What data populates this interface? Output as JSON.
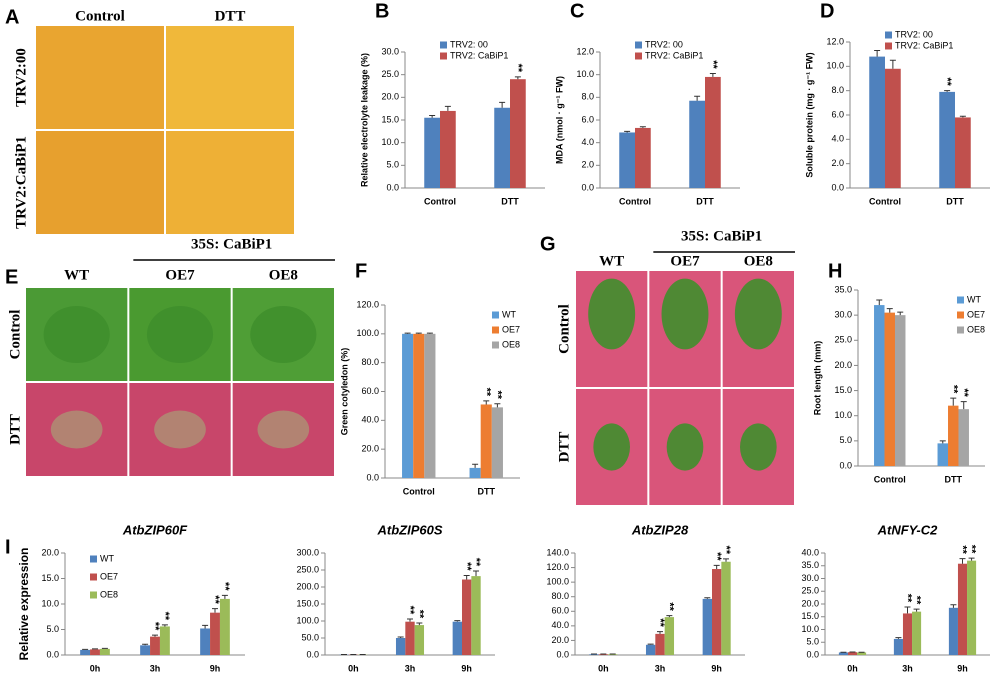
{
  "photos": [
    {
      "panel": "A",
      "columns": [
        "Control",
        "DTT"
      ],
      "rows": [
        "TRV2:00",
        "TRV2:CaBiP1"
      ]
    },
    {
      "panel": "E",
      "group": "35S: CaBiP1",
      "columns": [
        "WT",
        "OE7",
        "OE8"
      ],
      "rows": [
        "Control",
        "DTT"
      ]
    },
    {
      "panel": "G",
      "group": "35S: CaBiP1",
      "columns": [
        "WT",
        "OE7",
        "OE8"
      ],
      "rows": [
        "Control",
        "DTT"
      ]
    }
  ],
  "chart_data": [
    {
      "type": "bar",
      "panel": "B",
      "ylabel": "Relative electrolyte leakage (%)",
      "legend": "top",
      "categories": [
        "Control",
        "DTT"
      ],
      "series": [
        {
          "name": "TRV2: 00",
          "color": "#4f81bd",
          "values": [
            15.5,
            17.7
          ],
          "errors": [
            0.5,
            1.2
          ],
          "significance": [
            null,
            null
          ]
        },
        {
          "name": "TRV2: CaBiP1",
          "color": "#c0504d",
          "values": [
            17.0,
            24.0
          ],
          "errors": [
            1.0,
            0.5
          ],
          "significance": [
            null,
            "**"
          ]
        }
      ],
      "ylim": [
        0,
        30
      ],
      "yticks": [
        {
          "value": 0,
          "label": "0.0"
        },
        {
          "value": 5,
          "label": "5.0"
        },
        {
          "value": 10,
          "label": "10.0"
        },
        {
          "value": 15,
          "label": "15.0"
        },
        {
          "value": 20,
          "label": "20.0"
        },
        {
          "value": 25,
          "label": "25.0"
        },
        {
          "value": 30,
          "label": "30.0"
        }
      ]
    },
    {
      "type": "bar",
      "panel": "C",
      "ylabel": "MDA (nmol · g⁻¹ FW)",
      "legend": "top",
      "categories": [
        "Control",
        "DTT"
      ],
      "series": [
        {
          "name": "TRV2: 00",
          "color": "#4f81bd",
          "values": [
            4.9,
            7.7
          ],
          "errors": [
            0.1,
            0.4
          ],
          "significance": [
            null,
            null
          ]
        },
        {
          "name": "TRV2: CaBiP1",
          "color": "#c0504d",
          "values": [
            5.3,
            9.8
          ],
          "errors": [
            0.1,
            0.3
          ],
          "significance": [
            null,
            "**"
          ]
        }
      ],
      "ylim": [
        0,
        12
      ],
      "yticks": [
        {
          "value": 0,
          "label": "0.0"
        },
        {
          "value": 2,
          "label": "2.0"
        },
        {
          "value": 4,
          "label": "4.0"
        },
        {
          "value": 6,
          "label": "6.0"
        },
        {
          "value": 8,
          "label": "8.0"
        },
        {
          "value": 10,
          "label": "10.0"
        },
        {
          "value": 12,
          "label": "12.0"
        }
      ]
    },
    {
      "type": "bar",
      "panel": "D",
      "ylabel": "Soluble protein (mg · g⁻¹ FW)",
      "legend": "top",
      "categories": [
        "Control",
        "DTT"
      ],
      "series": [
        {
          "name": "TRV2: 00",
          "color": "#4f81bd",
          "values": [
            10.8,
            7.9
          ],
          "errors": [
            0.5,
            0.1
          ],
          "significance": [
            null,
            "**"
          ]
        },
        {
          "name": "TRV2: CaBiP1",
          "color": "#c0504d",
          "values": [
            9.8,
            5.8
          ],
          "errors": [
            0.7,
            0.1
          ],
          "significance": [
            null,
            null
          ]
        }
      ],
      "ylim": [
        0,
        12
      ],
      "yticks": [
        {
          "value": 0,
          "label": "0.0"
        },
        {
          "value": 2,
          "label": "2.0"
        },
        {
          "value": 4,
          "label": "4.0"
        },
        {
          "value": 6,
          "label": "6.0"
        },
        {
          "value": 8,
          "label": "8.0"
        },
        {
          "value": 10,
          "label": "10.0"
        },
        {
          "value": 12,
          "label": "12.0"
        }
      ]
    },
    {
      "type": "bar",
      "panel": "F",
      "ylabel": "Green cotyledon (%)",
      "legend": "right",
      "categories": [
        "Control",
        "DTT"
      ],
      "series": [
        {
          "name": "WT",
          "color": "#5b9bd5",
          "values": [
            100,
            7
          ],
          "errors": [
            0.5,
            2.5
          ],
          "significance": [
            null,
            null
          ]
        },
        {
          "name": "OE7",
          "color": "#ed7d31",
          "values": [
            100,
            51
          ],
          "errors": [
            0.5,
            2.5
          ],
          "significance": [
            null,
            "**"
          ]
        },
        {
          "name": "OE8",
          "color": "#a5a5a5",
          "values": [
            100,
            49
          ],
          "errors": [
            0.5,
            2.5
          ],
          "significance": [
            null,
            "**"
          ]
        }
      ],
      "ylim": [
        0,
        120
      ],
      "yticks": [
        {
          "value": 0,
          "label": "0.0"
        },
        {
          "value": 20,
          "label": "20.0"
        },
        {
          "value": 40,
          "label": "40.0"
        },
        {
          "value": 60,
          "label": "60.0"
        },
        {
          "value": 80,
          "label": "80.0"
        },
        {
          "value": 100,
          "label": "100.0"
        },
        {
          "value": 120,
          "label": "120.0"
        }
      ]
    },
    {
      "type": "bar",
      "panel": "H",
      "ylabel": "Root length (mm)",
      "legend": "right",
      "categories": [
        "Control",
        "DTT"
      ],
      "series": [
        {
          "name": "WT",
          "color": "#5b9bd5",
          "values": [
            32,
            4.5
          ],
          "errors": [
            1.0,
            0.5
          ],
          "significance": [
            null,
            null
          ]
        },
        {
          "name": "OE7",
          "color": "#ed7d31",
          "values": [
            30.5,
            12
          ],
          "errors": [
            0.8,
            1.5
          ],
          "significance": [
            null,
            "**"
          ]
        },
        {
          "name": "OE8",
          "color": "#a5a5a5",
          "values": [
            30,
            11.3
          ],
          "errors": [
            0.6,
            1.5
          ],
          "significance": [
            null,
            "**"
          ]
        }
      ],
      "ylim": [
        0,
        35
      ],
      "yticks": [
        {
          "value": 0,
          "label": "0.0"
        },
        {
          "value": 5,
          "label": "5.0"
        },
        {
          "value": 10,
          "label": "10.0"
        },
        {
          "value": 15,
          "label": "15.0"
        },
        {
          "value": 20,
          "label": "20.0"
        },
        {
          "value": 25,
          "label": "25.0"
        },
        {
          "value": 30,
          "label": "30.0"
        },
        {
          "value": 35,
          "label": "35.0"
        }
      ]
    },
    {
      "type": "bar",
      "panel": "I",
      "title": "AtbZIP60F",
      "ylabel": "Relative expression",
      "legend": "upper left",
      "categories": [
        "0h",
        "3h",
        "9h"
      ],
      "series": [
        {
          "name": "WT",
          "color": "#4f81bd",
          "values": [
            1.0,
            1.9,
            5.2
          ],
          "errors": [
            0.1,
            0.2,
            0.6
          ],
          "significance": [
            null,
            null,
            null
          ]
        },
        {
          "name": "OE7",
          "color": "#c0504d",
          "values": [
            1.1,
            3.6,
            8.3
          ],
          "errors": [
            0.1,
            0.3,
            0.8
          ],
          "significance": [
            null,
            "**",
            "**"
          ]
        },
        {
          "name": "OE8",
          "color": "#9bbb59",
          "values": [
            1.2,
            5.6,
            11.0
          ],
          "errors": [
            0.1,
            0.3,
            0.7
          ],
          "significance": [
            null,
            "**",
            "**"
          ]
        }
      ],
      "ylim": [
        0,
        20
      ],
      "yticks": [
        {
          "value": 0,
          "label": "0.0"
        },
        {
          "value": 5,
          "label": "5.0"
        },
        {
          "value": 10,
          "label": "10.0"
        },
        {
          "value": 15,
          "label": "15.0"
        },
        {
          "value": 20,
          "label": "20.0"
        }
      ]
    },
    {
      "type": "bar",
      "title": "AtbZIP60S",
      "categories": [
        "0h",
        "3h",
        "9h"
      ],
      "series": [
        {
          "color": "#4f81bd",
          "values": [
            1,
            50,
            98
          ],
          "errors": [
            0.5,
            3,
            3
          ],
          "significance": [
            null,
            null,
            null
          ]
        },
        {
          "color": "#c0504d",
          "values": [
            1,
            98,
            222
          ],
          "errors": [
            0.5,
            8,
            12
          ],
          "significance": [
            null,
            "**",
            "**"
          ]
        },
        {
          "color": "#9bbb59",
          "values": [
            1,
            88,
            232
          ],
          "errors": [
            0.5,
            6,
            15
          ],
          "significance": [
            null,
            "**",
            "**"
          ]
        }
      ],
      "ylim": [
        0,
        300
      ],
      "yticks": [
        {
          "value": 0,
          "label": "0.0"
        },
        {
          "value": 50,
          "label": "50.0"
        },
        {
          "value": 100,
          "label": "100.0"
        },
        {
          "value": 150,
          "label": "150.0"
        },
        {
          "value": 200,
          "label": "200.0"
        },
        {
          "value": 250,
          "label": "250.0"
        },
        {
          "value": 300,
          "label": "300.0"
        }
      ]
    },
    {
      "type": "bar",
      "title": "AtbZIP28",
      "categories": [
        "0h",
        "3h",
        "9h"
      ],
      "series": [
        {
          "color": "#4f81bd",
          "values": [
            1,
            14,
            77
          ],
          "errors": [
            0.3,
            1,
            1.5
          ],
          "significance": [
            null,
            null,
            null
          ]
        },
        {
          "color": "#c0504d",
          "values": [
            1,
            29,
            118
          ],
          "errors": [
            0.3,
            3,
            5
          ],
          "significance": [
            null,
            "**",
            "**"
          ]
        },
        {
          "color": "#9bbb59",
          "values": [
            1,
            52,
            128
          ],
          "errors": [
            0.3,
            2,
            4
          ],
          "significance": [
            null,
            "**",
            "**"
          ]
        }
      ],
      "ylim": [
        0,
        140
      ],
      "yticks": [
        {
          "value": 0,
          "label": "0.0"
        },
        {
          "value": 20,
          "label": "20.0"
        },
        {
          "value": 40,
          "label": "40.0"
        },
        {
          "value": 60,
          "label": "60.0"
        },
        {
          "value": 80,
          "label": "80.0"
        },
        {
          "value": 100,
          "label": "100.0"
        },
        {
          "value": 120,
          "label": "120.0"
        },
        {
          "value": 140,
          "label": "140.0"
        }
      ]
    },
    {
      "type": "bar",
      "title": "AtNFY-C2",
      "categories": [
        "0h",
        "3h",
        "9h"
      ],
      "series": [
        {
          "color": "#4f81bd",
          "values": [
            1,
            6.3,
            18.5
          ],
          "errors": [
            0.1,
            0.5,
            1.2
          ],
          "significance": [
            null,
            null,
            null
          ]
        },
        {
          "color": "#c0504d",
          "values": [
            1.1,
            16.3,
            35.8
          ],
          "errors": [
            0.1,
            2.5,
            2
          ],
          "significance": [
            null,
            "**",
            "**"
          ]
        },
        {
          "color": "#9bbb59",
          "values": [
            1,
            17,
            37
          ],
          "errors": [
            0.1,
            1,
            1
          ],
          "significance": [
            null,
            "**",
            "**"
          ]
        }
      ],
      "ylim": [
        0,
        40
      ],
      "yticks": [
        {
          "value": 0,
          "label": "0.0"
        },
        {
          "value": 5,
          "label": "5.0"
        },
        {
          "value": 10,
          "label": "10.0"
        },
        {
          "value": 15,
          "label": "15.0"
        },
        {
          "value": 20,
          "label": "20.0"
        },
        {
          "value": 25,
          "label": "25.0"
        },
        {
          "value": 30,
          "label": "30.0"
        },
        {
          "value": 35,
          "label": "35.0"
        },
        {
          "value": 40,
          "label": "40.0"
        }
      ]
    }
  ]
}
